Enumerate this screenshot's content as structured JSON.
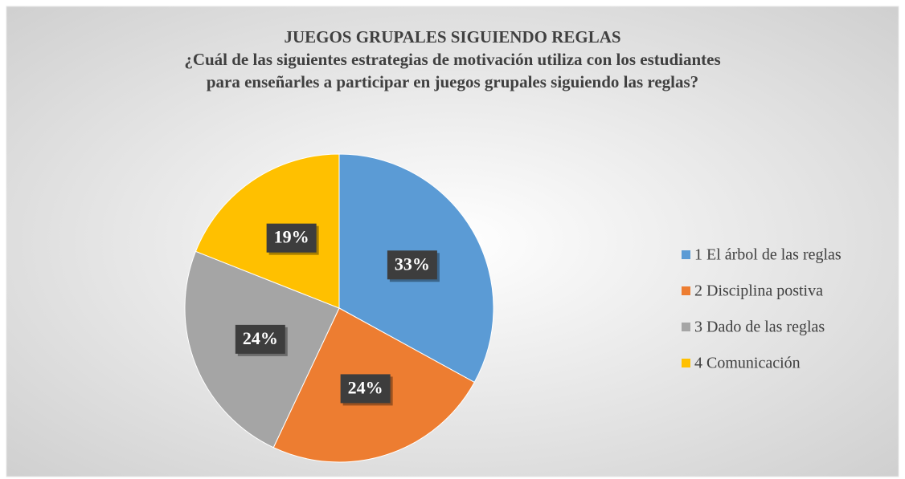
{
  "chart_data": {
    "type": "pie",
    "title": "JUEGOS GRUPALES SIGUIENDO REGLAS",
    "subtitle": [
      "¿Cuál de las siguientes estrategias de motivación utiliza con los estudiantes",
      "para enseñarles a participar en juegos grupales siguiendo las reglas?"
    ],
    "categories": [
      "1 El árbol de las reglas",
      "2 Disciplina postiva",
      "3 Dado de las reglas",
      "4 Comunicación"
    ],
    "values": [
      33,
      24,
      24,
      19
    ],
    "value_labels": [
      "33%",
      "24%",
      "24%",
      "19%"
    ],
    "colors": [
      "#5b9bd5",
      "#ed7d31",
      "#a5a5a5",
      "#ffc000"
    ],
    "legend": "right"
  }
}
